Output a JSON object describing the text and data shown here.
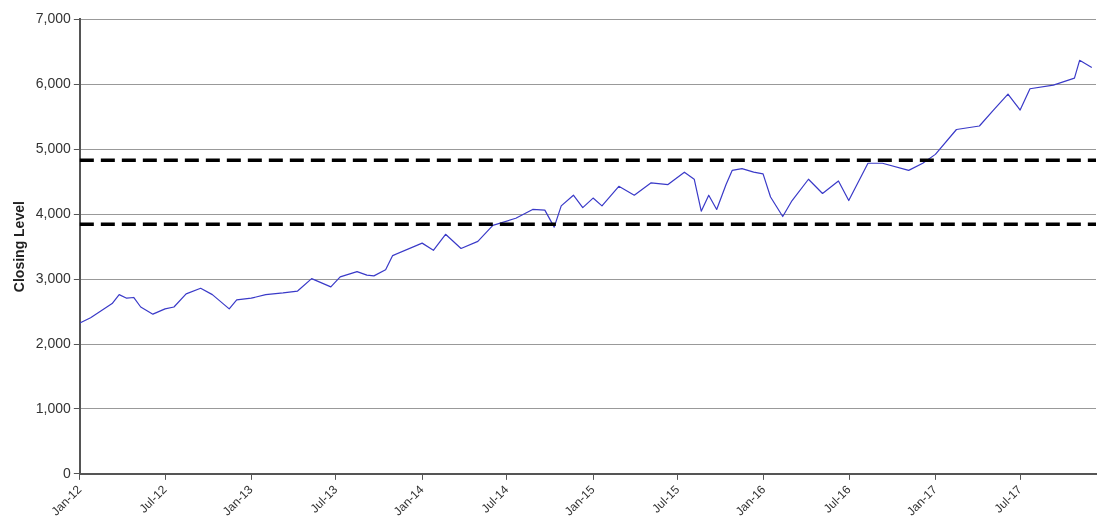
{
  "chart_data": {
    "type": "line",
    "ylabel": "Closing Level",
    "x": [
      "2012-01-01",
      "2012-01-24",
      "2012-03-10",
      "2012-03-25",
      "2012-04-10",
      "2012-04-25",
      "2012-05-10",
      "2012-06-05",
      "2012-07-01",
      "2012-07-20",
      "2012-08-15",
      "2012-09-15",
      "2012-10-10",
      "2012-11-15",
      "2012-12-01",
      "2013-01-01",
      "2013-02-01",
      "2013-03-10",
      "2013-04-10",
      "2013-05-10",
      "2013-06-20",
      "2013-07-10",
      "2013-08-15",
      "2013-09-05",
      "2013-09-20",
      "2013-10-15",
      "2013-10-30",
      "2014-01-01",
      "2014-01-25",
      "2014-02-20",
      "2014-03-25",
      "2014-04-30",
      "2014-06-01",
      "2014-07-20",
      "2014-08-25",
      "2014-09-20",
      "2014-10-10",
      "2014-10-25",
      "2014-11-20",
      "2014-12-10",
      "2015-01-01",
      "2015-01-20",
      "2015-02-25",
      "2015-03-30",
      "2015-05-05",
      "2015-06-10",
      "2015-07-15",
      "2015-08-05",
      "2015-08-20",
      "2015-09-05",
      "2015-09-22",
      "2015-10-12",
      "2015-10-25",
      "2015-11-15",
      "2015-12-10",
      "2015-12-30",
      "2016-01-15",
      "2016-02-10",
      "2016-03-01",
      "2016-04-05",
      "2016-05-05",
      "2016-06-08",
      "2016-06-30",
      "2016-08-10",
      "2016-09-10",
      "2016-11-05",
      "2016-12-05",
      "2017-01-01",
      "2017-02-15",
      "2017-04-05",
      "2017-05-05",
      "2017-06-05",
      "2017-07-01",
      "2017-07-22",
      "2017-09-10",
      "2017-10-25",
      "2017-11-05",
      "2017-12-01"
    ],
    "series": [
      {
        "color": "#3a3ac8",
        "values": [
          2324,
          2406,
          2624,
          2761,
          2706,
          2717,
          2570,
          2460,
          2542,
          2570,
          2772,
          2859,
          2761,
          2542,
          2679,
          2706,
          2761,
          2788,
          2816,
          3007,
          2881,
          3034,
          3116,
          3062,
          3050,
          3144,
          3362,
          3554,
          3444,
          3690,
          3472,
          3581,
          3827,
          3937,
          4073,
          4062,
          3800,
          4128,
          4292,
          4101,
          4248,
          4128,
          4429,
          4292,
          4483,
          4456,
          4647,
          4538,
          4046,
          4292,
          4073,
          4456,
          4674,
          4702,
          4647,
          4620,
          4265,
          3964,
          4210,
          4538,
          4319,
          4511,
          4210,
          4784,
          4784,
          4675,
          4784,
          4921,
          5304,
          5358,
          5604,
          5850,
          5604,
          5932,
          5987,
          6096,
          6370,
          6260
        ]
      }
    ],
    "xlim": [
      "2012-01-01",
      "2017-12-10"
    ],
    "xticks": [
      {
        "value": "2012-01-01",
        "label": "Jan-12"
      },
      {
        "value": "2012-07-01",
        "label": "Jul-12"
      },
      {
        "value": "2013-01-01",
        "label": "Jan-13"
      },
      {
        "value": "2013-07-01",
        "label": "Jul-13"
      },
      {
        "value": "2014-01-01",
        "label": "Jan-14"
      },
      {
        "value": "2014-07-01",
        "label": "Jul-14"
      },
      {
        "value": "2015-01-01",
        "label": "Jan-15"
      },
      {
        "value": "2015-07-01",
        "label": "Jul-15"
      },
      {
        "value": "2016-01-01",
        "label": "Jan-16"
      },
      {
        "value": "2016-07-01",
        "label": "Jul-16"
      },
      {
        "value": "2017-01-01",
        "label": "Jan-17"
      },
      {
        "value": "2017-07-01",
        "label": "Jul-17"
      }
    ],
    "ylim": [
      0,
      7000
    ],
    "yticks": [
      {
        "value": 0,
        "label": "0"
      },
      {
        "value": 1000,
        "label": "1,000"
      },
      {
        "value": 2000,
        "label": "2,000"
      },
      {
        "value": 3000,
        "label": "3,000"
      },
      {
        "value": 4000,
        "label": "4,000"
      },
      {
        "value": 5000,
        "label": "5,000"
      },
      {
        "value": 6000,
        "label": "6,000"
      },
      {
        "value": 7000,
        "label": "7,000"
      }
    ],
    "ref_lines": [
      {
        "axis": "y",
        "value": 4830,
        "color": "#000000",
        "line_style": "dashed"
      },
      {
        "axis": "y",
        "value": 3845,
        "color": "#000000",
        "line_style": "dashed"
      }
    ],
    "grid": "y",
    "legend": false,
    "marker": "none",
    "line_style": "solid"
  }
}
